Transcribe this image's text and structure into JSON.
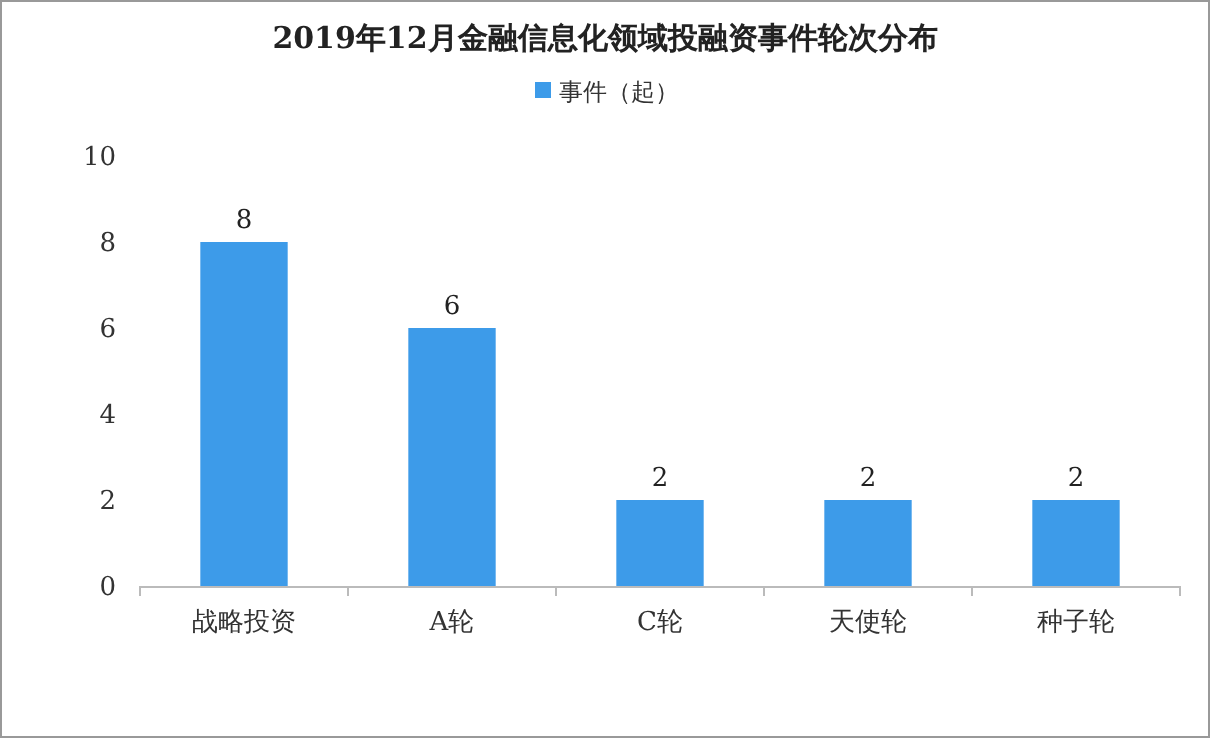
{
  "chart_data": {
    "type": "bar",
    "title": "2019年12月金融信息化领域投融资事件轮次分布",
    "categories": [
      "战略投资",
      "A轮",
      "C轮",
      "天使轮",
      "种子轮"
    ],
    "series": [
      {
        "name": "事件（起）",
        "color": "#3d9be9",
        "values": [
          8,
          6,
          2,
          2,
          2
        ]
      }
    ],
    "ylim": [
      0,
      10
    ],
    "yticks": [
      0,
      2,
      4,
      6,
      8,
      10
    ],
    "grid": false,
    "legend": "top",
    "data_labels": true
  }
}
